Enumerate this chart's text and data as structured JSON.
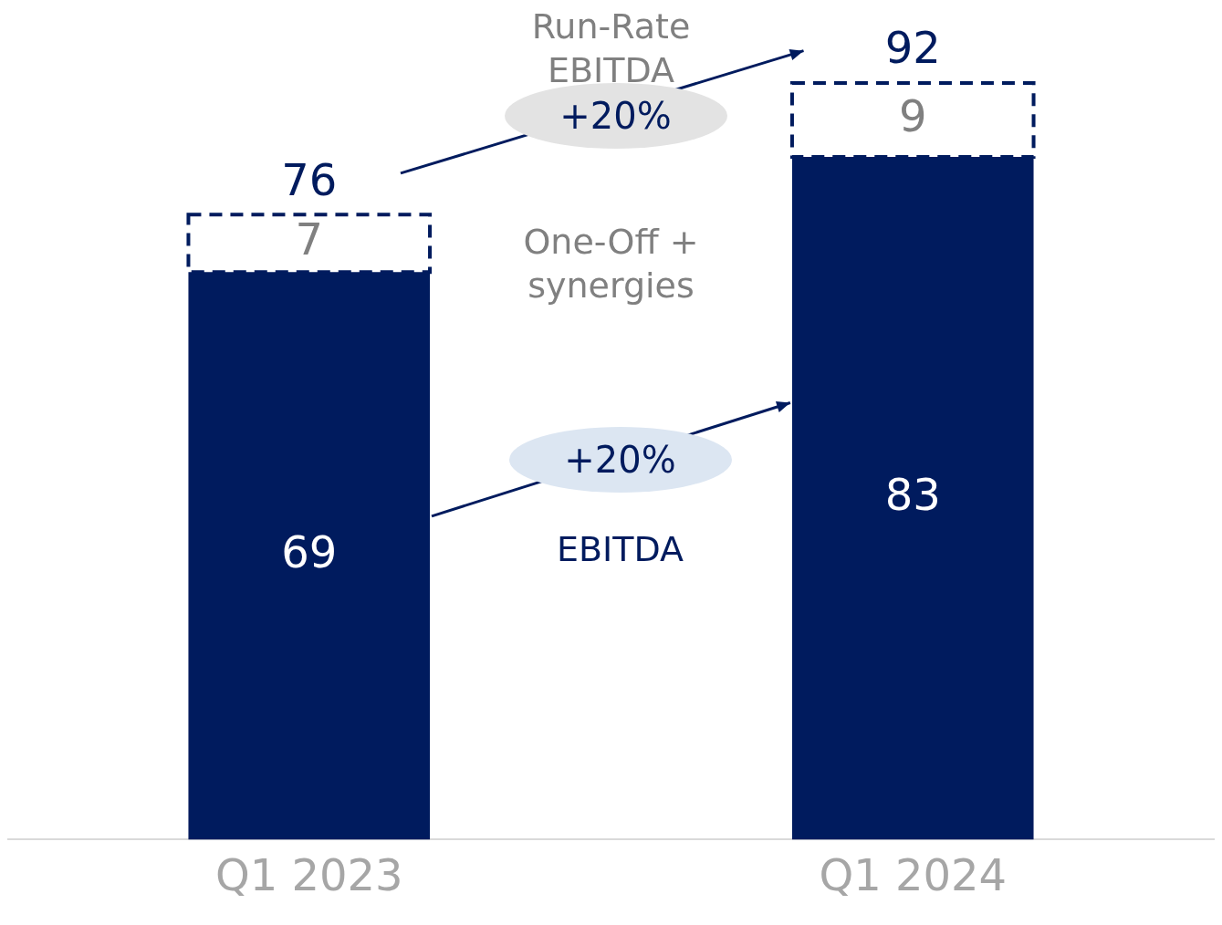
{
  "chart_data": {
    "type": "bar",
    "stacked": true,
    "categories": [
      "Q1 2023",
      "Q1 2024"
    ],
    "data_labels": true,
    "legend": false,
    "grid": false,
    "series": [
      {
        "name": "EBITDA",
        "color": "#001b5e",
        "values": [
          69,
          83
        ]
      },
      {
        "name": "One-Off + synergies",
        "color": "#ffffff",
        "values": [
          7,
          9
        ]
      }
    ],
    "totals": [
      "76",
      "92"
    ],
    "annotations": [
      "Run-Rate EBITDA",
      "+20%",
      "+20%"
    ]
  }
}
